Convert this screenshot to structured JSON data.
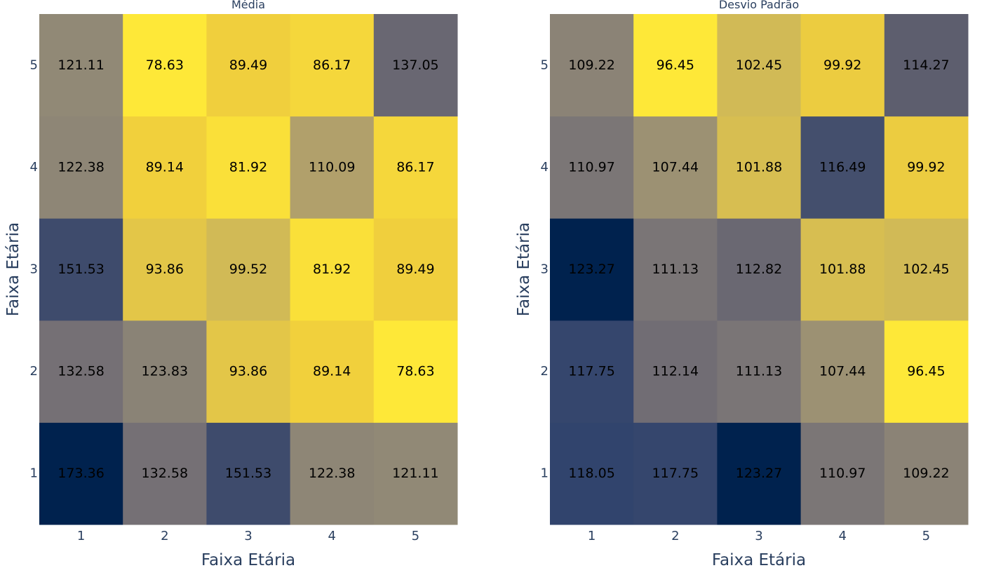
{
  "chart_data": [
    {
      "type": "heatmap",
      "title": "Média",
      "xlabel": "Faixa Etária",
      "ylabel": "Faixa Etária",
      "x": [
        "1",
        "2",
        "3",
        "4",
        "5"
      ],
      "y": [
        "1",
        "2",
        "3",
        "4",
        "5"
      ],
      "z": [
        [
          173.36,
          132.58,
          151.53,
          122.38,
          121.11
        ],
        [
          132.58,
          123.83,
          93.86,
          89.14,
          78.63
        ],
        [
          151.53,
          93.86,
          99.52,
          81.92,
          89.49
        ],
        [
          122.38,
          89.14,
          81.92,
          110.09,
          86.17
        ],
        [
          121.11,
          78.63,
          89.49,
          86.17,
          137.05
        ]
      ],
      "labels": [
        [
          "173.36",
          "132.58",
          "151.53",
          "122.38",
          "121.11"
        ],
        [
          "132.58",
          "123.83",
          "93.86",
          "89.14",
          "78.63"
        ],
        [
          "151.53",
          "93.86",
          "99.52",
          "81.92",
          "89.49"
        ],
        [
          "122.38",
          "89.14",
          "81.92",
          "110.09",
          "86.17"
        ],
        [
          "121.11",
          "78.63",
          "89.49",
          "86.17",
          "137.05"
        ]
      ],
      "colorscale": "cividis",
      "grid": false
    },
    {
      "type": "heatmap",
      "title": "Desvio Padrão",
      "xlabel": "Faixa Etária",
      "ylabel": "Faixa Etária",
      "x": [
        "1",
        "2",
        "3",
        "4",
        "5"
      ],
      "y": [
        "1",
        "2",
        "3",
        "4",
        "5"
      ],
      "z": [
        [
          118.05,
          117.75,
          123.27,
          110.97,
          109.22
        ],
        [
          117.75,
          112.14,
          111.13,
          107.44,
          96.45
        ],
        [
          123.27,
          111.13,
          112.82,
          101.88,
          102.45
        ],
        [
          110.97,
          107.44,
          101.88,
          116.49,
          99.92
        ],
        [
          109.22,
          96.45,
          102.45,
          99.92,
          114.27
        ]
      ],
      "labels": [
        [
          "118.05",
          "117.75",
          "123.27",
          "110.97",
          "109.22"
        ],
        [
          "117.75",
          "112.14",
          "111.13",
          "107.44",
          "96.45"
        ],
        [
          "123.27",
          "111.13",
          "112.82",
          "101.88",
          "102.45"
        ],
        [
          "110.97",
          "107.44",
          "101.88",
          "116.49",
          "99.92"
        ],
        [
          "109.22",
          "96.45",
          "102.45",
          "99.92",
          "114.27"
        ]
      ],
      "colorscale": "cividis",
      "grid": false
    }
  ]
}
